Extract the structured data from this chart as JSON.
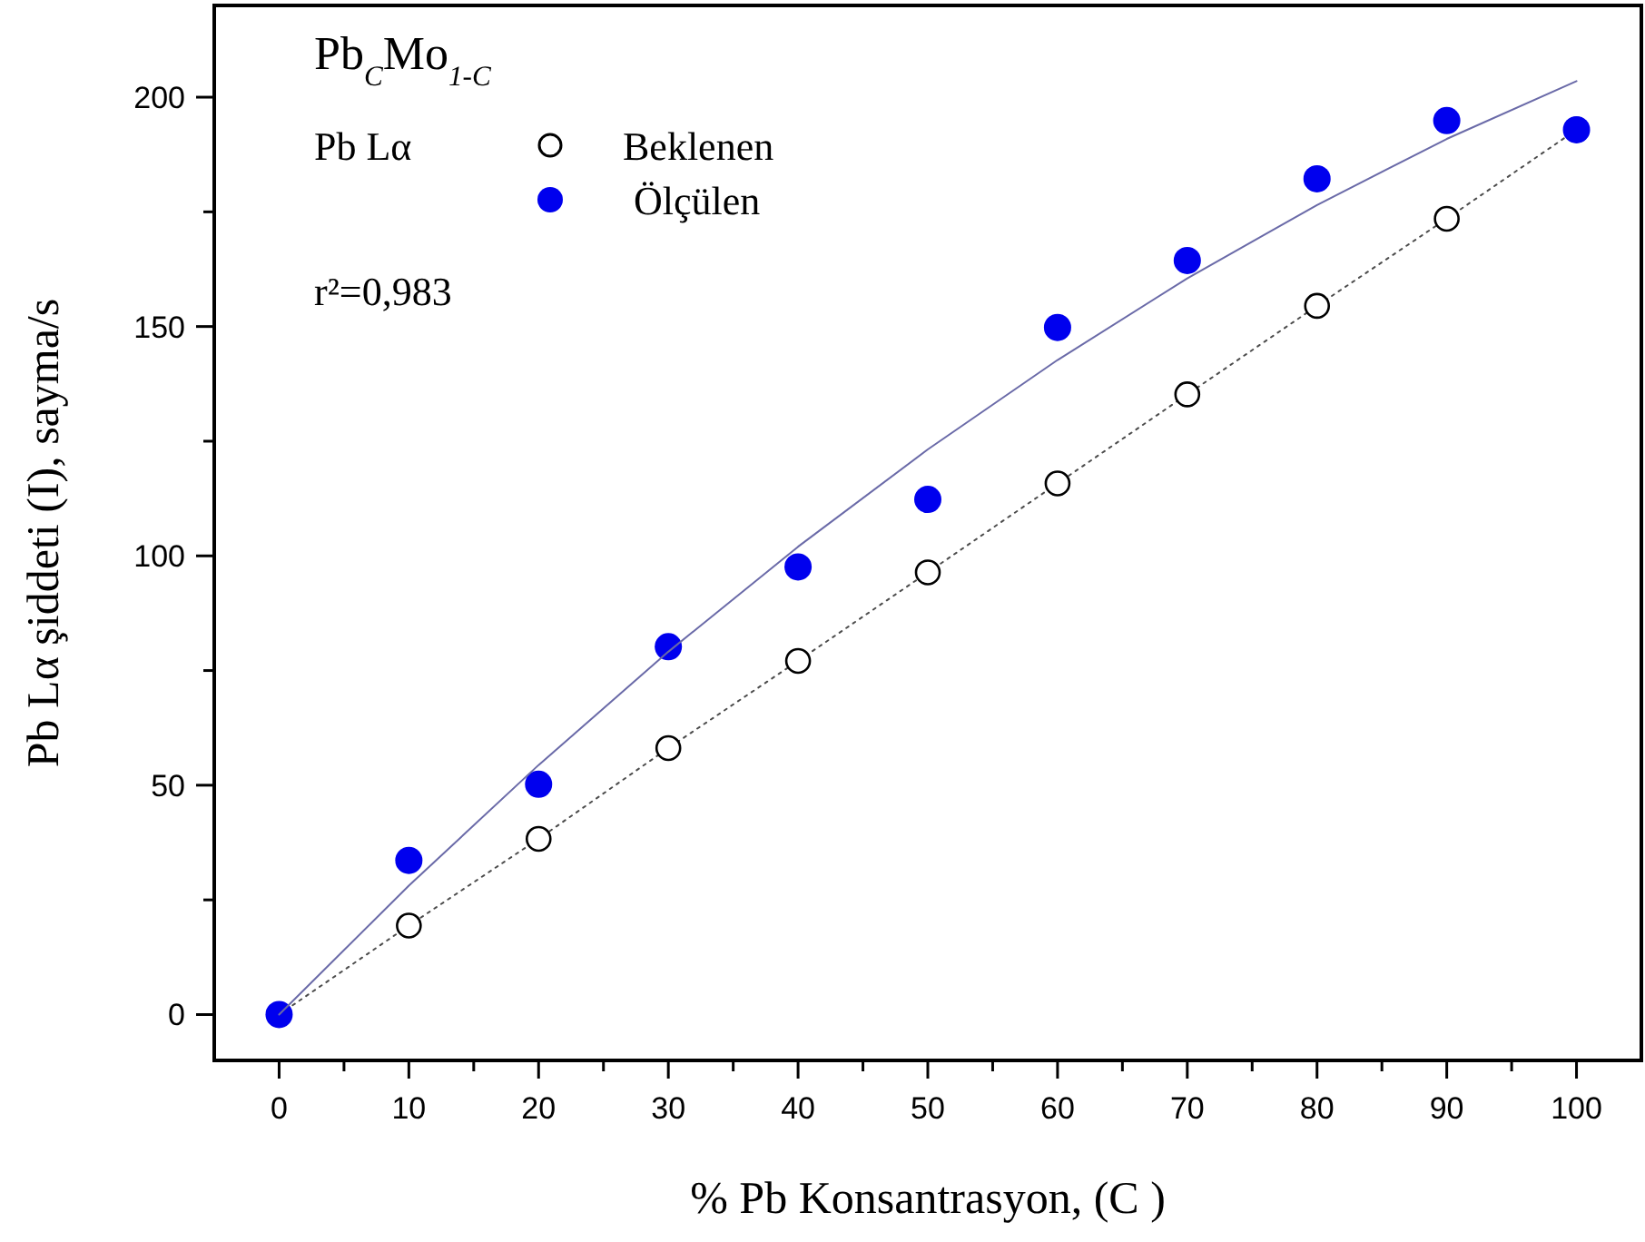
{
  "chart_data": {
    "type": "scatter",
    "title": "Pb$_{C}$Mo$_{1-C}$",
    "xlabel": "% Pb Konsantrasyon, (C )",
    "ylabel": "Pb Lα şiddeti  (I), sayma/s",
    "legend_title": "Pb Lα",
    "legend": "top left",
    "annotations": [
      "r²=0,983"
    ],
    "x": [
      0,
      10,
      20,
      30,
      40,
      50,
      60,
      70,
      80,
      90,
      100
    ],
    "series": [
      {
        "name": "Beklenen",
        "type": "line",
        "color": "#000000",
        "line_style": "dotted",
        "marker": "circle",
        "values": [
          0,
          19.4,
          38.3,
          58.1,
          77.1,
          96.4,
          115.8,
          135.2,
          154.5,
          173.5,
          192.9
        ]
      },
      {
        "name": "Ölçülen",
        "type": "scatter",
        "color": "#0000ee",
        "marker": "circle",
        "values": [
          0,
          33.6,
          50.2,
          80.2,
          97.6,
          112.3,
          149.8,
          164.4,
          182.2,
          194.9,
          192.9
        ]
      },
      {
        "type": "line",
        "color": "#6a6aa8",
        "line_style": "solid",
        "marker": "none",
        "x": [
          0,
          10,
          20,
          30,
          40,
          50,
          60,
          70,
          80,
          90,
          100
        ],
        "values": [
          0,
          28.1,
          54.4,
          79.1,
          102,
          123.2,
          142.7,
          160.5,
          176.5,
          190.9,
          203.5
        ]
      }
    ],
    "xlim": [
      -5,
      105
    ],
    "ylim": [
      -10,
      220
    ],
    "xticks": [
      0,
      {
        "value": 5,
        "label": null
      },
      10,
      {
        "value": 15,
        "label": null
      },
      20,
      {
        "value": 25,
        "label": null
      },
      30,
      {
        "value": 35,
        "label": null
      },
      40,
      {
        "value": 45,
        "label": null
      },
      50,
      {
        "value": 55,
        "label": null
      },
      60,
      {
        "value": 65,
        "label": null
      },
      70,
      {
        "value": 75,
        "label": null
      },
      80,
      {
        "value": 85,
        "label": null
      },
      90,
      {
        "value": 95,
        "label": null
      },
      100
    ],
    "yticks": [
      0,
      {
        "value": 25,
        "label": null
      },
      50,
      {
        "value": 75,
        "label": null
      },
      100,
      {
        "value": 125,
        "label": null
      },
      150,
      {
        "value": 175,
        "label": null
      },
      200
    ],
    "grid": false
  }
}
